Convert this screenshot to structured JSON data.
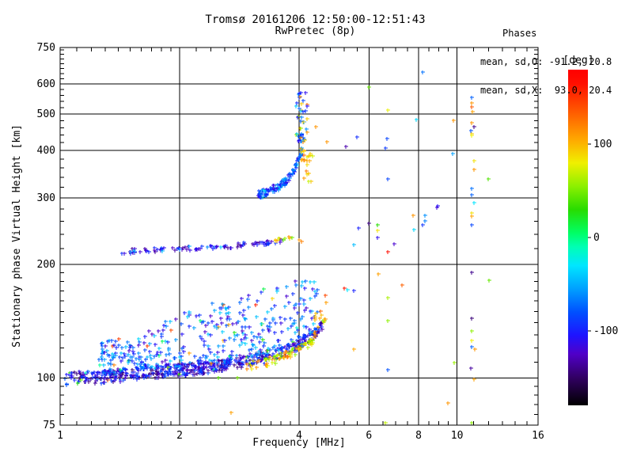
{
  "header": {
    "title": "Tromsø 20161206 12:50:00-12:51:43",
    "subtitle": "RwPretec (8p)",
    "stats_title": "Phases",
    "stats_line_o": "mean, sd,O: -91.2, 20.8",
    "stats_line_x": "mean, sd,X:  93.0, 20.4"
  },
  "chart_data": {
    "type": "scatter",
    "title": "Tromsø 20161206 12:50:00-12:51:43",
    "subtitle": "RwPretec (8p)",
    "xlabel": "Frequency [MHz]",
    "ylabel": "Stationary phase Virtual Height [km]",
    "x_scale": "log",
    "y_scale": "log",
    "xlim": [
      1,
      16
    ],
    "ylim": [
      75,
      750
    ],
    "x_major_ticks": [
      1,
      2,
      4,
      6,
      8,
      10,
      16
    ],
    "x_grid": [
      2,
      4,
      6,
      8,
      10
    ],
    "x_minor_ticks": [
      1.1,
      1.2,
      1.3,
      1.4,
      1.5,
      1.6,
      1.7,
      1.8,
      1.9,
      2.2,
      2.4,
      2.6,
      2.8,
      3,
      3.2,
      3.4,
      3.6,
      3.8,
      4.4,
      4.8,
      5.2,
      5.6,
      6.5,
      7,
      7.5,
      8.5,
      9,
      9.5,
      11,
      12,
      13,
      14,
      15
    ],
    "y_major_ticks": [
      75,
      100,
      200,
      300,
      400,
      500,
      600,
      750
    ],
    "y_grid": [
      100,
      200,
      300,
      400,
      500,
      600
    ],
    "y_minor_ticks": [
      80,
      85,
      90,
      95,
      110,
      120,
      130,
      140,
      150,
      160,
      170,
      180,
      190,
      220,
      240,
      260,
      280,
      320,
      340,
      360,
      380,
      420,
      440,
      460,
      480,
      520,
      540,
      560,
      580,
      620,
      640,
      660,
      680,
      700,
      720,
      740
    ],
    "grid": true,
    "marker": "plus",
    "stats": {
      "mean_O": -91.2,
      "sd_O": 20.8,
      "mean_X": 93.0,
      "sd_X": 20.4
    },
    "colorbar": {
      "label": "[deg]",
      "range": [
        -180,
        180
      ],
      "ticks": [
        100,
        0,
        -100
      ],
      "stops": [
        [
          -180,
          "#000000"
        ],
        [
          -150,
          "#320064"
        ],
        [
          -125,
          "#5000c8"
        ],
        [
          -105,
          "#1e14ff"
        ],
        [
          -80,
          "#0050ff"
        ],
        [
          -55,
          "#00a0ff"
        ],
        [
          -30,
          "#00e6ff"
        ],
        [
          -10,
          "#00ffb4"
        ],
        [
          5,
          "#00ff64"
        ],
        [
          30,
          "#28dc00"
        ],
        [
          55,
          "#8cf000"
        ],
        [
          80,
          "#f0f000"
        ],
        [
          105,
          "#ffa800"
        ],
        [
          135,
          "#ff5a00"
        ],
        [
          165,
          "#ff0f00"
        ],
        [
          180,
          "#ff0000"
        ]
      ]
    },
    "seed": 20161206,
    "clusters": [
      {
        "name": "e-region-band",
        "count": 500,
        "f": [
          1.02,
          4.6
        ],
        "env": [
          [
            1.0,
            100
          ],
          [
            1.3,
            101
          ],
          [
            1.6,
            103
          ],
          [
            2.0,
            105
          ],
          [
            2.4,
            107
          ],
          [
            2.8,
            110
          ],
          [
            3.2,
            113
          ],
          [
            3.6,
            117
          ],
          [
            4.0,
            123
          ],
          [
            4.3,
            129
          ],
          [
            4.6,
            138
          ]
        ],
        "jit": [
          -4,
          4
        ],
        "phase": [
          -148,
          -78
        ],
        "out": 0.02,
        "outp": [
          -60,
          160
        ]
      },
      {
        "name": "e-region-cloud",
        "count": 440,
        "f": [
          1.25,
          4.55
        ],
        "env": [
          [
            1.0,
            100
          ],
          [
            1.3,
            101
          ],
          [
            1.6,
            103
          ],
          [
            2.0,
            105
          ],
          [
            2.4,
            107
          ],
          [
            2.8,
            110
          ],
          [
            3.2,
            113
          ],
          [
            3.6,
            117
          ],
          [
            4.0,
            123
          ],
          [
            4.3,
            129
          ],
          [
            4.6,
            138
          ]
        ],
        "span": [
          [
            1.0,
            14
          ],
          [
            1.6,
            28
          ],
          [
            2.2,
            45
          ],
          [
            3.0,
            58
          ],
          [
            3.8,
            60
          ],
          [
            4.55,
            45
          ]
        ],
        "pow": 1.7,
        "phase": [
          -125,
          -35
        ],
        "out": 0.05,
        "outp": [
          -20,
          170
        ]
      },
      {
        "name": "e-region-yellow-edge",
        "count": 90,
        "f": [
          2.95,
          4.68
        ],
        "env": [
          [
            2.95,
            107
          ],
          [
            3.3,
            110
          ],
          [
            3.7,
            115
          ],
          [
            4.0,
            119
          ],
          [
            4.25,
            124
          ],
          [
            4.45,
            131
          ],
          [
            4.6,
            140
          ],
          [
            4.68,
            147
          ]
        ],
        "jit": [
          -3,
          3
        ],
        "phase": [
          40,
          128
        ],
        "out": 0.08,
        "outp": [
          -120,
          -60
        ]
      },
      {
        "name": "e-region-orange-risers",
        "count": 12,
        "f": [
          4.3,
          4.68
        ],
        "env": [
          [
            4.3,
            128
          ],
          [
            4.5,
            138
          ],
          [
            4.68,
            152
          ]
        ],
        "jit": [
          0,
          18
        ],
        "phase": [
          90,
          145
        ]
      },
      {
        "name": "mid-trace-220km",
        "count": 95,
        "f": [
          1.43,
          3.62
        ],
        "env": [
          [
            1.43,
            216
          ],
          [
            1.8,
            219
          ],
          [
            2.2,
            221
          ],
          [
            2.6,
            223
          ],
          [
            3.0,
            226
          ],
          [
            3.3,
            228
          ],
          [
            3.62,
            232
          ]
        ],
        "jit": [
          -3,
          3
        ],
        "phase": [
          -138,
          -88
        ],
        "out": 0.12,
        "outp": [
          -75,
          -40
        ]
      },
      {
        "name": "mid-trace-tail",
        "count": 10,
        "f": [
          3.42,
          3.85
        ],
        "env": [
          [
            3.42,
            231
          ],
          [
            3.85,
            236
          ]
        ],
        "jit": [
          -2,
          2
        ],
        "phase": [
          25,
          115
        ]
      },
      {
        "name": "f-trace",
        "count": 125,
        "f": [
          3.15,
          4.06
        ],
        "env": [
          [
            3.15,
            306
          ],
          [
            3.35,
            313
          ],
          [
            3.55,
            322
          ],
          [
            3.75,
            337
          ],
          [
            3.9,
            360
          ],
          [
            4.0,
            385
          ],
          [
            4.06,
            400
          ]
        ],
        "jit": [
          -8,
          8
        ],
        "phase": [
          -118,
          -45
        ],
        "out": 0.06,
        "outp": [
          -35,
          -15
        ]
      },
      {
        "name": "f-trace-top-spread",
        "count": 48,
        "f": [
          3.92,
          4.2
        ],
        "env": [
          [
            3.92,
            400
          ],
          [
            4.2,
            400
          ]
        ],
        "jit": [
          0,
          175
        ],
        "phase": [
          -112,
          -35
        ],
        "out": 0.18,
        "outp": [
          55,
          135
        ]
      },
      {
        "name": "f-orange-cluster",
        "count": 22,
        "f": [
          4.04,
          4.33
        ],
        "env": [
          [
            4.04,
            330
          ],
          [
            4.33,
            330
          ]
        ],
        "jit": [
          0,
          70
        ],
        "phase": [
          68,
          132
        ]
      }
    ],
    "points": [
      [
        8.2,
        645,
        -70
      ],
      [
        6.0,
        588,
        45
      ],
      [
        6.7,
        512,
        78
      ],
      [
        7.9,
        484,
        -35
      ],
      [
        9.8,
        481,
        112
      ],
      [
        5.6,
        434,
        -95
      ],
      [
        6.65,
        430,
        -85
      ],
      [
        5.25,
        410,
        -132
      ],
      [
        6.6,
        407,
        -90
      ],
      [
        4.7,
        423,
        112
      ],
      [
        4.4,
        462,
        112
      ],
      [
        9.75,
        393,
        -55
      ],
      [
        6.7,
        337,
        -85
      ],
      [
        12.0,
        337,
        40
      ],
      [
        8.95,
        286,
        -108
      ],
      [
        8.9,
        283,
        -118
      ],
      [
        7.75,
        270,
        112
      ],
      [
        8.3,
        270,
        -60
      ],
      [
        8.3,
        261,
        -65
      ],
      [
        8.2,
        254,
        -92
      ],
      [
        6.0,
        257,
        -142
      ],
      [
        6.3,
        254,
        30
      ],
      [
        5.65,
        249,
        -100
      ],
      [
        6.3,
        246,
        85
      ],
      [
        7.8,
        247,
        -35
      ],
      [
        6.95,
        227,
        -122
      ],
      [
        6.3,
        235,
        -112
      ],
      [
        5.5,
        225,
        -45
      ],
      [
        6.7,
        216,
        168
      ],
      [
        6.34,
        189,
        108
      ],
      [
        5.2,
        173,
        162
      ],
      [
        5.3,
        171,
        -30
      ],
      [
        5.5,
        170,
        -100
      ],
      [
        7.25,
        176,
        132
      ],
      [
        6.7,
        163,
        62
      ],
      [
        6.7,
        142,
        55
      ],
      [
        5.5,
        119,
        105
      ],
      [
        6.7,
        105,
        -80
      ],
      [
        9.85,
        110,
        58
      ],
      [
        9.5,
        86,
        112
      ],
      [
        6.6,
        76,
        68
      ],
      [
        2.7,
        81,
        108
      ],
      [
        2.5,
        100,
        42
      ],
      [
        2.8,
        100,
        50
      ],
      [
        12.05,
        181,
        45
      ],
      [
        4.0,
        232,
        112
      ],
      [
        4.05,
        230,
        120
      ],
      [
        10.9,
        553,
        -75
      ],
      [
        10.9,
        534,
        112
      ],
      [
        10.9,
        523,
        135
      ],
      [
        10.95,
        507,
        108
      ],
      [
        10.9,
        473,
        112
      ],
      [
        11.05,
        462,
        -140
      ],
      [
        10.85,
        452,
        -80
      ],
      [
        10.9,
        444,
        95
      ],
      [
        10.9,
        438,
        80
      ],
      [
        11.05,
        376,
        85
      ],
      [
        11.05,
        357,
        112
      ],
      [
        10.9,
        317,
        -70
      ],
      [
        10.9,
        306,
        -75
      ],
      [
        11.05,
        291,
        -30
      ],
      [
        10.9,
        274,
        85
      ],
      [
        10.9,
        268,
        108
      ],
      [
        10.9,
        254,
        -85
      ],
      [
        10.9,
        190,
        -140
      ],
      [
        10.9,
        144,
        -145
      ],
      [
        10.9,
        133,
        55
      ],
      [
        10.9,
        126,
        80
      ],
      [
        10.9,
        121,
        -75
      ],
      [
        11.1,
        119,
        112
      ],
      [
        10.85,
        106,
        -135
      ],
      [
        11.05,
        99,
        108
      ],
      [
        10.9,
        76,
        55
      ]
    ]
  }
}
